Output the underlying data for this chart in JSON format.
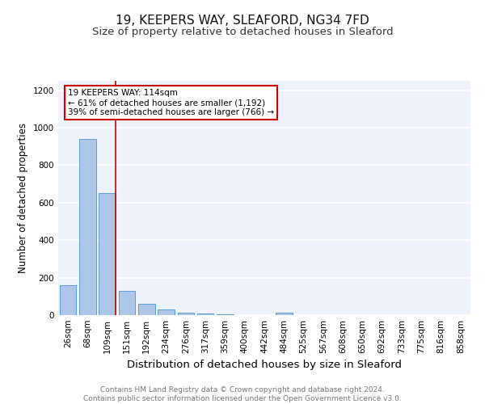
{
  "title1": "19, KEEPERS WAY, SLEAFORD, NG34 7FD",
  "title2": "Size of property relative to detached houses in Sleaford",
  "xlabel": "Distribution of detached houses by size in Sleaford",
  "ylabel": "Number of detached properties",
  "footnote": "Contains HM Land Registry data © Crown copyright and database right 2024.\nContains public sector information licensed under the Open Government Licence v3.0.",
  "categories": [
    "26sqm",
    "68sqm",
    "109sqm",
    "151sqm",
    "192sqm",
    "234sqm",
    "276sqm",
    "317sqm",
    "359sqm",
    "400sqm",
    "442sqm",
    "484sqm",
    "525sqm",
    "567sqm",
    "608sqm",
    "650sqm",
    "692sqm",
    "733sqm",
    "775sqm",
    "816sqm",
    "858sqm"
  ],
  "values": [
    160,
    940,
    650,
    130,
    60,
    30,
    15,
    10,
    5,
    0,
    0,
    15,
    0,
    0,
    0,
    0,
    0,
    0,
    0,
    0,
    0
  ],
  "bar_color": "#aec6e8",
  "bar_edge_color": "#5b9bd5",
  "vline_x_index": 2,
  "vline_color": "#cc0000",
  "annotation_text": "19 KEEPERS WAY: 114sqm\n← 61% of detached houses are smaller (1,192)\n39% of semi-detached houses are larger (766) →",
  "annotation_box_color": "#ffffff",
  "annotation_box_edge": "#cc0000",
  "ylim": [
    0,
    1250
  ],
  "yticks": [
    0,
    200,
    400,
    600,
    800,
    1000,
    1200
  ],
  "bg_color": "#edf2fb",
  "grid_color": "#ffffff",
  "title1_fontsize": 11,
  "title2_fontsize": 9.5,
  "xlabel_fontsize": 9.5,
  "ylabel_fontsize": 8.5,
  "tick_fontsize": 7.5,
  "footnote_fontsize": 6.5
}
